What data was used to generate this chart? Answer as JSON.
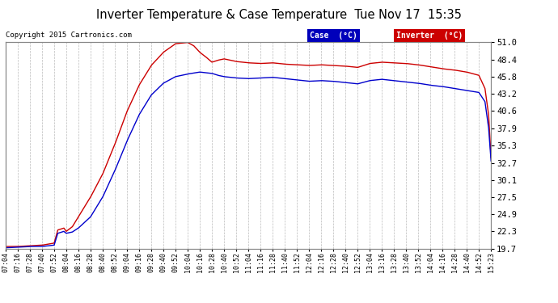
{
  "title": "Inverter Temperature & Case Temperature  Tue Nov 17  15:35",
  "copyright": "Copyright 2015 Cartronics.com",
  "legend_case": "Case  (°C)",
  "legend_inverter": "Inverter  (°C)",
  "case_color": "#0000cc",
  "inverter_color": "#cc0000",
  "legend_case_bg": "#0000bb",
  "legend_inverter_bg": "#cc0000",
  "background_color": "#ffffff",
  "plot_bg_color": "#ffffff",
  "grid_color": "#aaaaaa",
  "yticks": [
    19.7,
    22.3,
    24.9,
    27.5,
    30.1,
    32.7,
    35.3,
    37.9,
    40.6,
    43.2,
    45.8,
    48.4,
    51.0
  ],
  "xtick_labels": [
    "07:04",
    "07:16",
    "07:28",
    "07:40",
    "07:52",
    "08:04",
    "08:16",
    "08:28",
    "08:40",
    "08:52",
    "09:04",
    "09:16",
    "09:28",
    "09:40",
    "09:52",
    "10:04",
    "10:16",
    "10:28",
    "10:40",
    "10:52",
    "11:04",
    "11:16",
    "11:28",
    "11:40",
    "11:52",
    "12:04",
    "12:16",
    "12:28",
    "12:40",
    "12:52",
    "13:04",
    "13:16",
    "13:28",
    "13:40",
    "13:52",
    "14:04",
    "14:16",
    "14:28",
    "14:40",
    "14:52",
    "15:23"
  ],
  "ymin": 19.7,
  "ymax": 51.0
}
